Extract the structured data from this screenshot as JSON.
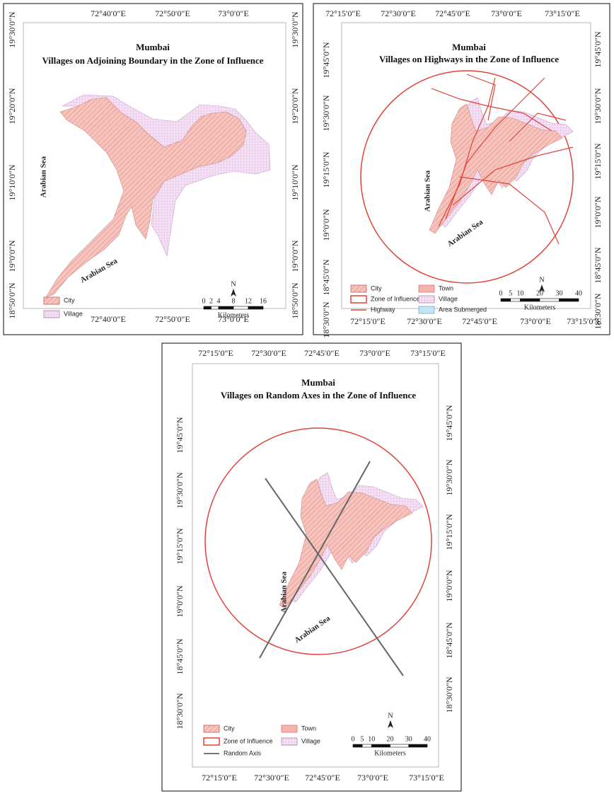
{
  "panels": [
    {
      "title": "Mumbai",
      "subtitle": "Villages on Adjoining Boundary in the Zone of Influence",
      "top_labels": [
        "72°40′0″E",
        "72°50′0″E",
        "73°0′0″E"
      ],
      "bottom_labels": [
        "72°40′0″E",
        "72°50′0″E",
        "73°0′0″E"
      ],
      "left_labels": [
        "19°30′0″N",
        "19°20′0″N",
        "19°10′0″N",
        "19°0′0″N",
        "18°50′0″N"
      ],
      "right_labels": [
        "19°30′0″N",
        "19°20′0″N",
        "19°10′0″N",
        "19°0′0″N",
        "18°50′0″N"
      ],
      "annotations": [
        "Arabian Sea",
        "Arabian Sea"
      ],
      "legend": [
        "City",
        "Village"
      ],
      "north": "N",
      "scale": [
        0,
        2,
        4,
        8,
        12,
        16
      ],
      "scale_unit": "Kilometers"
    },
    {
      "title": "Mumbai",
      "subtitle": "Villages on Highways in the Zone of Influence",
      "top_labels": [
        "72°15′0″E",
        "72°30′0″E",
        "72°45′0″E",
        "73°0′0″E",
        "73°15′0″E"
      ],
      "bottom_labels": [
        "72°15′0″E",
        "72°30′0″E",
        "72°45′0″E",
        "73°0′0″E",
        "73°15′0″E"
      ],
      "left_labels": [
        "19°45′0″N",
        "19°30′0″N",
        "19°15′0″N",
        "19°0′0″N",
        "18°45′0″N",
        "18°30′0″N"
      ],
      "right_labels": [
        "19°45′0″N",
        "19°30′0″N",
        "19°15′0″N",
        "19°0′0″N",
        "18°45′0″N",
        "18°30′0″N"
      ],
      "annotations": [
        "Arabian Sea",
        "Arabian Sea"
      ],
      "legend": [
        "City",
        "Zone of Influence",
        "Highway",
        "Town",
        "Village",
        "Area Submerged"
      ],
      "north": "N",
      "scale": [
        0,
        5,
        10,
        20,
        30,
        40
      ],
      "scale_unit": "Kilometers"
    },
    {
      "title": "Mumbai",
      "subtitle": "Villages on Random Axes in the Zone of Influence",
      "top_labels": [
        "72°15′0″E",
        "72°30′0″E",
        "72°45′0″E",
        "73°0′0″E",
        "73°15′0″E"
      ],
      "bottom_labels": [
        "72°15′0″E",
        "72°30′0″E",
        "72°45′0″E",
        "73°0′0″E",
        "73°15′0″E"
      ],
      "left_labels": [
        "19°45′0″N",
        "19°30′0″N",
        "19°15′0″N",
        "19°0′0″N",
        "18°45′0″N",
        "18°30′0″N"
      ],
      "right_labels": [
        "19°45′0″N",
        "19°30′0″N",
        "19°15′0″N",
        "19°0′0″N",
        "18°45′0″N",
        "18°30′0″N"
      ],
      "annotations": [
        "Arabian Sea",
        "Arabian Sea"
      ],
      "legend": [
        "City",
        "Zone of Influence",
        "Random Axis",
        "Town",
        "Village"
      ],
      "north": "N",
      "scale": [
        0,
        5,
        10,
        20,
        30,
        40
      ],
      "scale_unit": "Kilometers"
    }
  ]
}
